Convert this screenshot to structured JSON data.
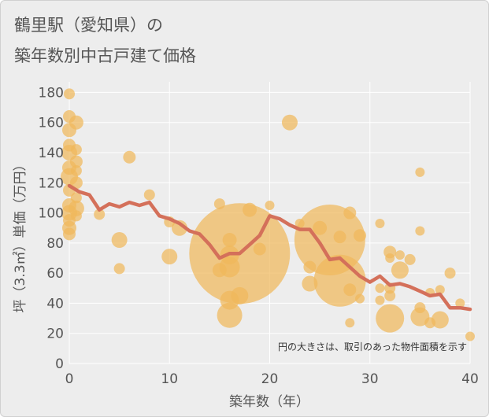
{
  "title_line1": "鶴里駅（愛知県）の",
  "title_line2": "築年数別中古戸建て価格",
  "chart_data": {
    "type": "scatter",
    "xlabel": "築年数（年）",
    "ylabel": "坪（3.3㎡）単価（万円）",
    "xlim": [
      0,
      40
    ],
    "ylim": [
      0,
      187
    ],
    "xticks": [
      0,
      10,
      20,
      30,
      40
    ],
    "yticks": [
      0,
      20,
      40,
      60,
      80,
      100,
      120,
      140,
      160,
      180
    ],
    "note": "円の大きさは、取引のあった物件面積を示す",
    "colors": {
      "bubble": "#f0b85c",
      "line": "#d4705a",
      "grid": "#ffffff",
      "background": "#ededed"
    },
    "bubbles": [
      {
        "x": 0,
        "y": 179,
        "r": 7
      },
      {
        "x": 0,
        "y": 164,
        "r": 8
      },
      {
        "x": 0,
        "y": 155,
        "r": 9
      },
      {
        "x": 0,
        "y": 145,
        "r": 8
      },
      {
        "x": 0,
        "y": 140,
        "r": 10
      },
      {
        "x": 0,
        "y": 130,
        "r": 9
      },
      {
        "x": 0,
        "y": 124,
        "r": 11
      },
      {
        "x": 0,
        "y": 115,
        "r": 8
      },
      {
        "x": 0,
        "y": 105,
        "r": 9
      },
      {
        "x": 0,
        "y": 100,
        "r": 10
      },
      {
        "x": 0,
        "y": 95,
        "r": 8
      },
      {
        "x": 0,
        "y": 90,
        "r": 9
      },
      {
        "x": 0,
        "y": 86,
        "r": 8
      },
      {
        "x": 0.7,
        "y": 160,
        "r": 9
      },
      {
        "x": 0.7,
        "y": 142,
        "r": 7
      },
      {
        "x": 0.7,
        "y": 134,
        "r": 8
      },
      {
        "x": 0.7,
        "y": 128,
        "r": 7
      },
      {
        "x": 0.7,
        "y": 120,
        "r": 8
      },
      {
        "x": 0.7,
        "y": 110,
        "r": 7
      },
      {
        "x": 0.7,
        "y": 103,
        "r": 10
      },
      {
        "x": 0.7,
        "y": 98,
        "r": 7
      },
      {
        "x": 3,
        "y": 99,
        "r": 7
      },
      {
        "x": 5,
        "y": 82,
        "r": 10
      },
      {
        "x": 5,
        "y": 63,
        "r": 7
      },
      {
        "x": 6,
        "y": 137,
        "r": 8
      },
      {
        "x": 8,
        "y": 112,
        "r": 7
      },
      {
        "x": 10,
        "y": 94,
        "r": 7
      },
      {
        "x": 10,
        "y": 71,
        "r": 10
      },
      {
        "x": 11,
        "y": 90,
        "r": 10
      },
      {
        "x": 15,
        "y": 106,
        "r": 7
      },
      {
        "x": 15,
        "y": 62,
        "r": 9
      },
      {
        "x": 16,
        "y": 82,
        "r": 9
      },
      {
        "x": 16,
        "y": 72,
        "r": 12
      },
      {
        "x": 16,
        "y": 64,
        "r": 13
      },
      {
        "x": 16,
        "y": 42,
        "r": 12
      },
      {
        "x": 16,
        "y": 32,
        "r": 16
      },
      {
        "x": 17,
        "y": 73,
        "r": 64
      },
      {
        "x": 17,
        "y": 45,
        "r": 11
      },
      {
        "x": 18,
        "y": 102,
        "r": 9
      },
      {
        "x": 19,
        "y": 76,
        "r": 8
      },
      {
        "x": 20,
        "y": 105,
        "r": 6
      },
      {
        "x": 22,
        "y": 160,
        "r": 10
      },
      {
        "x": 23,
        "y": 93,
        "r": 6
      },
      {
        "x": 24,
        "y": 64,
        "r": 8
      },
      {
        "x": 24,
        "y": 53,
        "r": 10
      },
      {
        "x": 25,
        "y": 90,
        "r": 9
      },
      {
        "x": 26,
        "y": 82,
        "r": 45
      },
      {
        "x": 27,
        "y": 55,
        "r": 33
      },
      {
        "x": 27,
        "y": 84,
        "r": 8
      },
      {
        "x": 28,
        "y": 100,
        "r": 8
      },
      {
        "x": 28,
        "y": 49,
        "r": 8
      },
      {
        "x": 28,
        "y": 27,
        "r": 6
      },
      {
        "x": 29,
        "y": 85,
        "r": 8
      },
      {
        "x": 29,
        "y": 43,
        "r": 6
      },
      {
        "x": 31,
        "y": 93,
        "r": 6
      },
      {
        "x": 31,
        "y": 50,
        "r": 6
      },
      {
        "x": 31,
        "y": 42,
        "r": 6
      },
      {
        "x": 32,
        "y": 74,
        "r": 8
      },
      {
        "x": 32,
        "y": 70,
        "r": 6
      },
      {
        "x": 32,
        "y": 50,
        "r": 7
      },
      {
        "x": 32,
        "y": 45,
        "r": 7
      },
      {
        "x": 32,
        "y": 30,
        "r": 18
      },
      {
        "x": 33,
        "y": 72,
        "r": 6
      },
      {
        "x": 33,
        "y": 62,
        "r": 11
      },
      {
        "x": 34,
        "y": 69,
        "r": 7
      },
      {
        "x": 35,
        "y": 127,
        "r": 6
      },
      {
        "x": 35,
        "y": 88,
        "r": 6
      },
      {
        "x": 35,
        "y": 37,
        "r": 7
      },
      {
        "x": 35,
        "y": 31,
        "r": 12
      },
      {
        "x": 36,
        "y": 47,
        "r": 6
      },
      {
        "x": 36,
        "y": 27,
        "r": 7
      },
      {
        "x": 37,
        "y": 49,
        "r": 6
      },
      {
        "x": 37,
        "y": 29,
        "r": 11
      },
      {
        "x": 38,
        "y": 60,
        "r": 7
      },
      {
        "x": 39,
        "y": 40,
        "r": 6
      },
      {
        "x": 40,
        "y": 18,
        "r": 6
      }
    ],
    "trend": {
      "x": [
        0,
        1,
        2,
        3,
        4,
        5,
        6,
        7,
        8,
        9,
        10,
        11,
        12,
        13,
        14,
        15,
        16,
        17,
        18,
        19,
        20,
        21,
        22,
        23,
        24,
        25,
        26,
        27,
        28,
        29,
        30,
        31,
        32,
        33,
        34,
        35,
        36,
        37,
        38,
        39,
        40
      ],
      "y": [
        118,
        114,
        112,
        102,
        106,
        104,
        107,
        105,
        107,
        98,
        96,
        93,
        88,
        86,
        79,
        70,
        73,
        73,
        79,
        85,
        98,
        96,
        92,
        89,
        89,
        80,
        69,
        70,
        64,
        58,
        54,
        58,
        52,
        53,
        51,
        48,
        45,
        46,
        37,
        37,
        36
      ]
    }
  }
}
